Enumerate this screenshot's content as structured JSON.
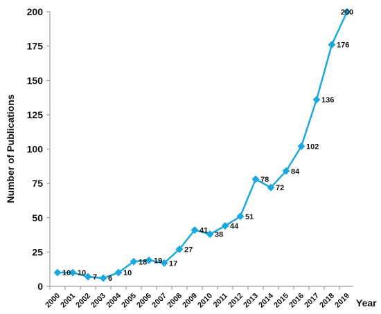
{
  "chart_data": {
    "type": "line",
    "title": "",
    "xlabel": "Year",
    "ylabel": "Number of Publications",
    "x": [
      "2000",
      "2001",
      "2002",
      "2003",
      "2004",
      "2005",
      "2006",
      "2007",
      "2008",
      "2009",
      "2010",
      "2011",
      "2012",
      "2013",
      "2014",
      "2015",
      "2016",
      "2017",
      "2018",
      "2019"
    ],
    "series": [
      {
        "values": [
          10,
          10,
          7,
          6,
          10,
          18,
          19,
          17,
          27,
          41,
          38,
          44,
          51,
          78,
          72,
          84,
          102,
          136,
          176,
          200
        ]
      }
    ],
    "ylim": [
      0,
      200
    ],
    "yticks": [
      0,
      25,
      50,
      75,
      100,
      125,
      150,
      175,
      200
    ],
    "grid": false,
    "line_color": "#1ba8dc",
    "marker": "diamond",
    "data_labels": true
  }
}
